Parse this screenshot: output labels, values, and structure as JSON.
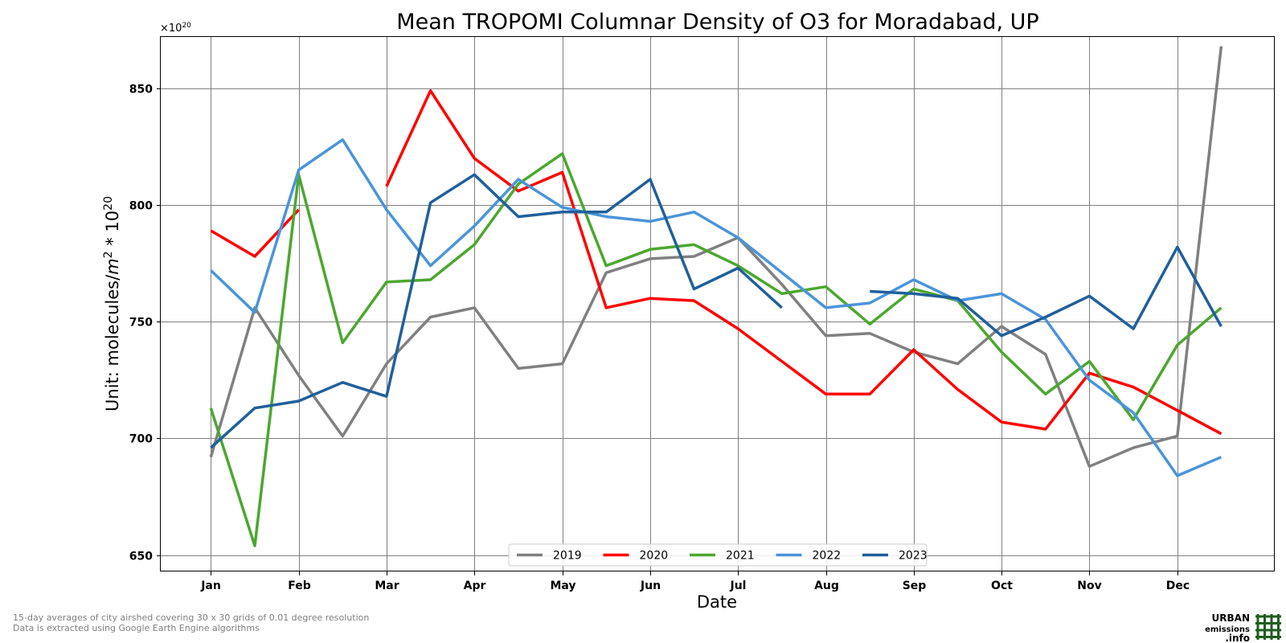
{
  "chart_data": {
    "type": "line",
    "title": "Mean TROPOMI Columnar Density of O3 for Moradabad, UP",
    "xlabel": "Date",
    "ylabel_prefix": "Unit: molecules/",
    "ylabel_m": "m",
    "ylabel_exp": "2",
    "ylabel_mid": " * 10",
    "ylabel_exp2": "20",
    "y_multiplier_base": "×10",
    "y_multiplier_exp": "20",
    "ylim": [
      643,
      872
    ],
    "xlim": [
      -0.57,
      12.1
    ],
    "yticks": [
      650,
      700,
      750,
      800,
      850
    ],
    "xticks": [
      "Jan",
      "Feb",
      "Mar",
      "Apr",
      "May",
      "Jun",
      "Jul",
      "Aug",
      "Sep",
      "Oct",
      "Nov",
      "Dec"
    ],
    "grid": true,
    "legend_position": "bottom-center",
    "x_note": "x values are in months from Jan 1; each point is a 15-day average (Jan, mid-Jan, Feb, ...)",
    "series": [
      {
        "name": "2019",
        "color": "#808080",
        "segments": [
          [
            [
              0,
              692
            ],
            [
              0.5,
              756
            ],
            [
              1,
              727
            ],
            [
              1.5,
              701
            ],
            [
              2,
              732
            ],
            [
              2.5,
              752
            ],
            [
              3,
              756
            ],
            [
              3.5,
              730
            ],
            [
              4,
              732
            ],
            [
              4.5,
              771
            ],
            [
              5,
              777
            ],
            [
              5.5,
              778
            ],
            [
              6,
              786
            ],
            [
              6.5,
              766
            ],
            [
              7,
              744
            ],
            [
              7.5,
              745
            ],
            [
              8,
              737
            ],
            [
              8.5,
              732
            ],
            [
              9,
              748
            ],
            [
              9.5,
              736
            ],
            [
              10,
              688
            ],
            [
              10.5,
              696
            ],
            [
              11,
              701
            ],
            [
              11.5,
              868
            ]
          ]
        ]
      },
      {
        "name": "2020",
        "color": "#ff0000",
        "segments": [
          [
            [
              0,
              789
            ],
            [
              0.5,
              778
            ],
            [
              1,
              798
            ]
          ],
          [
            [
              2,
              808
            ],
            [
              2.5,
              849
            ],
            [
              3,
              820
            ],
            [
              3.5,
              806
            ],
            [
              4,
              814
            ],
            [
              4.5,
              756
            ],
            [
              5,
              760
            ],
            [
              5.5,
              759
            ],
            [
              6,
              747
            ],
            [
              6.5,
              733
            ],
            [
              7,
              719
            ],
            [
              7.5,
              719
            ],
            [
              8,
              738
            ],
            [
              8.5,
              721
            ],
            [
              9,
              707
            ],
            [
              9.5,
              704
            ],
            [
              10,
              728
            ],
            [
              10.5,
              722
            ],
            [
              11,
              712
            ],
            [
              11.5,
              702
            ]
          ]
        ]
      },
      {
        "name": "2021",
        "color": "#4ca72f",
        "segments": [
          [
            [
              0,
              713
            ],
            [
              0.5,
              654
            ],
            [
              1,
              813
            ],
            [
              1.5,
              741
            ],
            [
              2,
              767
            ],
            [
              2.5,
              768
            ],
            [
              3,
              783
            ],
            [
              3.5,
              809
            ],
            [
              4,
              822
            ],
            [
              4.5,
              774
            ],
            [
              5,
              781
            ],
            [
              5.5,
              783
            ],
            [
              6,
              774
            ],
            [
              6.5,
              762
            ],
            [
              7,
              765
            ],
            [
              7.5,
              749
            ],
            [
              8,
              764
            ],
            [
              8.5,
              759
            ],
            [
              9,
              737
            ],
            [
              9.5,
              719
            ],
            [
              10,
              733
            ],
            [
              10.5,
              708
            ],
            [
              11,
              740
            ],
            [
              11.5,
              756
            ]
          ]
        ]
      },
      {
        "name": "2022",
        "color": "#4b94d9",
        "segments": [
          [
            [
              0,
              772
            ],
            [
              0.5,
              754
            ],
            [
              1,
              815
            ],
            [
              1.5,
              828
            ],
            [
              2,
              798
            ],
            [
              2.5,
              774
            ],
            [
              3,
              791
            ],
            [
              3.5,
              811
            ],
            [
              4,
              799
            ],
            [
              4.5,
              795
            ],
            [
              5,
              793
            ],
            [
              5.5,
              797
            ],
            [
              6,
              786
            ],
            [
              6.5,
              771
            ],
            [
              7,
              756
            ],
            [
              7.5,
              758
            ],
            [
              8,
              768
            ],
            [
              8.5,
              759
            ],
            [
              9,
              762
            ],
            [
              9.5,
              751
            ],
            [
              10,
              725
            ],
            [
              10.5,
              711
            ],
            [
              11,
              684
            ],
            [
              11.5,
              692
            ]
          ]
        ]
      },
      {
        "name": "2023",
        "color": "#205f9b",
        "segments": [
          [
            [
              0,
              696
            ],
            [
              0.5,
              713
            ],
            [
              1,
              716
            ],
            [
              1.5,
              724
            ],
            [
              2,
              718
            ],
            [
              2.5,
              801
            ],
            [
              3,
              813
            ],
            [
              3.5,
              795
            ],
            [
              4,
              797
            ],
            [
              4.5,
              797
            ],
            [
              5,
              811
            ],
            [
              5.5,
              764
            ],
            [
              6,
              773
            ],
            [
              6.5,
              756
            ]
          ],
          [
            [
              7.5,
              763
            ],
            [
              8,
              762
            ],
            [
              8.5,
              760
            ],
            [
              9,
              744
            ],
            [
              9.5,
              752
            ],
            [
              10,
              761
            ],
            [
              10.5,
              747
            ],
            [
              11,
              782
            ],
            [
              11.5,
              748
            ]
          ]
        ]
      }
    ]
  },
  "footnote": {
    "line1": "15-day averages of city airshed covering 30 x 30 grids of 0.01 degree resolution",
    "line2": "Data is extracted using Google Earth Engine algorithms"
  },
  "logo": {
    "line1": "URBAN",
    "line2": "emissions",
    "line3": ".info",
    "color": "#1e5e1e"
  }
}
